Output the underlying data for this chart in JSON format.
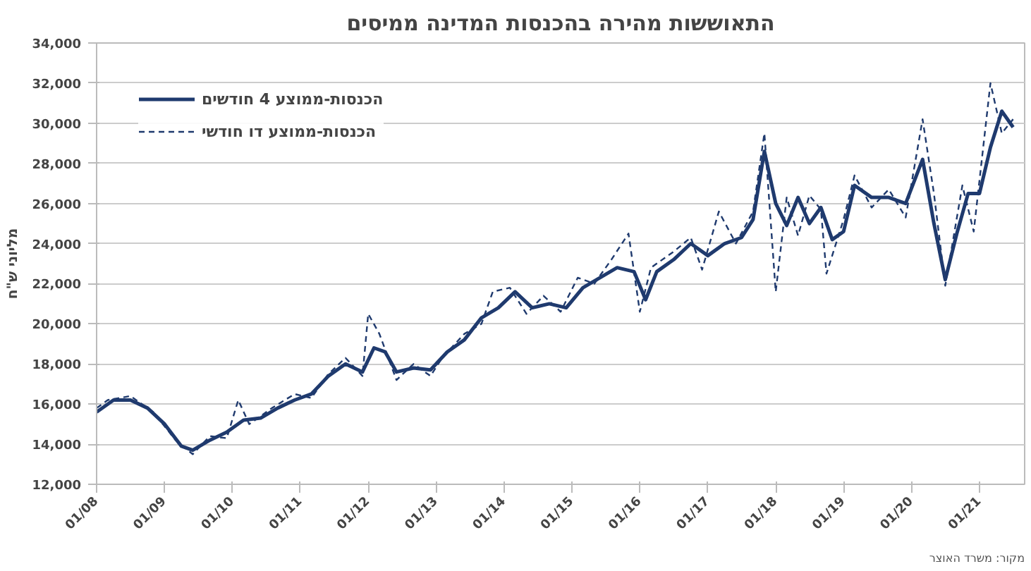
{
  "chart_data": {
    "type": "line",
    "title": "התאוששות מהירה בהכנסות המדינה ממיסים",
    "ylabel": "מליוני ש\"ח",
    "annotations": [
      "מקור: משרד האוצר"
    ],
    "xlim": [
      "2008-01",
      "2021-09"
    ],
    "xticks": [
      {
        "value": "2008-01",
        "label": "01/08"
      },
      {
        "value": "2009-01",
        "label": "01/09"
      },
      {
        "value": "2010-01",
        "label": "01/10"
      },
      {
        "value": "2011-01",
        "label": "01/11"
      },
      {
        "value": "2012-01",
        "label": "01/12"
      },
      {
        "value": "2013-01",
        "label": "01/13"
      },
      {
        "value": "2014-01",
        "label": "01/14"
      },
      {
        "value": "2015-01",
        "label": "01/15"
      },
      {
        "value": "2016-01",
        "label": "01/16"
      },
      {
        "value": "2017-01",
        "label": "01/17"
      },
      {
        "value": "2018-01",
        "label": "01/18"
      },
      {
        "value": "2019-01",
        "label": "01/19"
      },
      {
        "value": "2020-01",
        "label": "01/20"
      },
      {
        "value": "2021-01",
        "label": "01/21"
      }
    ],
    "ylim": [
      12000,
      34000
    ],
    "yticks": [
      {
        "value": 12000,
        "label": "12,000"
      },
      {
        "value": 14000,
        "label": "14,000"
      },
      {
        "value": 16000,
        "label": "16,000"
      },
      {
        "value": 18000,
        "label": "18,000"
      },
      {
        "value": 20000,
        "label": "20,000"
      },
      {
        "value": 22000,
        "label": "22,000"
      },
      {
        "value": 24000,
        "label": "24,000"
      },
      {
        "value": 26000,
        "label": "26,000"
      },
      {
        "value": 28000,
        "label": "28,000"
      },
      {
        "value": 30000,
        "label": "30,000"
      },
      {
        "value": 32000,
        "label": "32,000"
      },
      {
        "value": 34000,
        "label": "34,000"
      }
    ],
    "grid": "y",
    "legend": "top left",
    "series": [
      {
        "name": "הכנסות-ממוצע 4 חודשים",
        "color": "#1f3a6e",
        "line_style": "solid",
        "x": [
          "2008-01",
          "2008-04",
          "2008-07",
          "2008-10",
          "2009-01",
          "2009-04",
          "2009-06",
          "2009-09",
          "2009-12",
          "2010-03",
          "2010-06",
          "2010-09",
          "2010-12",
          "2011-03",
          "2011-06",
          "2011-09",
          "2011-12",
          "2012-02",
          "2012-04",
          "2012-06",
          "2012-09",
          "2012-12",
          "2013-03",
          "2013-06",
          "2013-09",
          "2013-12",
          "2014-03",
          "2014-06",
          "2014-09",
          "2014-12",
          "2015-03",
          "2015-06",
          "2015-09",
          "2015-12",
          "2016-02",
          "2016-04",
          "2016-07",
          "2016-10",
          "2017-01",
          "2017-04",
          "2017-07",
          "2017-09",
          "2017-11",
          "2018-01",
          "2018-03",
          "2018-05",
          "2018-07",
          "2018-09",
          "2018-11",
          "2019-01",
          "2019-03",
          "2019-06",
          "2019-09",
          "2019-12",
          "2020-03",
          "2020-05",
          "2020-07",
          "2020-09",
          "2020-11",
          "2021-01",
          "2021-03",
          "2021-05",
          "2021-07"
        ],
        "values": [
          15600,
          16200,
          16200,
          15800,
          15000,
          13900,
          13700,
          14200,
          14600,
          15200,
          15300,
          15800,
          16200,
          16500,
          17400,
          18000,
          17600,
          18800,
          18600,
          17600,
          17800,
          17700,
          18600,
          19200,
          20300,
          20800,
          21600,
          20800,
          21000,
          20800,
          21800,
          22300,
          22800,
          22600,
          21200,
          22600,
          23200,
          24000,
          23400,
          24000,
          24300,
          25200,
          28600,
          26000,
          24900,
          26300,
          25000,
          25800,
          24200,
          24600,
          26900,
          26300,
          26300,
          26000,
          28200,
          25000,
          22200,
          24500,
          26500,
          26500,
          28800,
          30600,
          29800
        ]
      },
      {
        "name": "הכנסות-ממוצע דו חודשי",
        "color": "#1f3a6e",
        "line_style": "dashed",
        "x": [
          "2008-01",
          "2008-03",
          "2008-07",
          "2008-11",
          "2009-03",
          "2009-06",
          "2009-09",
          "2009-12",
          "2010-02",
          "2010-04",
          "2010-08",
          "2010-12",
          "2011-03",
          "2011-06",
          "2011-09",
          "2011-12",
          "2012-01",
          "2012-03",
          "2012-06",
          "2012-09",
          "2012-12",
          "2013-02",
          "2013-06",
          "2013-09",
          "2013-11",
          "2014-02",
          "2014-05",
          "2014-08",
          "2014-11",
          "2015-02",
          "2015-05",
          "2015-08",
          "2015-11",
          "2016-01",
          "2016-03",
          "2016-07",
          "2016-10",
          "2016-12",
          "2017-03",
          "2017-06",
          "2017-09",
          "2017-11",
          "2018-01",
          "2018-03",
          "2018-05",
          "2018-07",
          "2018-09",
          "2018-10",
          "2019-01",
          "2019-03",
          "2019-06",
          "2019-09",
          "2019-12",
          "2020-03",
          "2020-05",
          "2020-07",
          "2020-10",
          "2020-12",
          "2021-03",
          "2021-05",
          "2021-07"
        ],
        "values": [
          15800,
          16200,
          16400,
          15600,
          14200,
          13500,
          14400,
          14300,
          16200,
          15000,
          15800,
          16500,
          16300,
          17500,
          18300,
          17400,
          20500,
          19500,
          17200,
          18000,
          17400,
          18300,
          19500,
          20000,
          21600,
          21800,
          20500,
          21400,
          20600,
          22300,
          22000,
          23200,
          24500,
          20600,
          22800,
          23600,
          24300,
          22700,
          25600,
          24000,
          25600,
          29500,
          21600,
          26300,
          24400,
          26400,
          25700,
          22500,
          25200,
          27400,
          25800,
          26700,
          25300,
          30200,
          26500,
          21900,
          26900,
          24600,
          32000,
          29500,
          30200
        ]
      }
    ]
  }
}
